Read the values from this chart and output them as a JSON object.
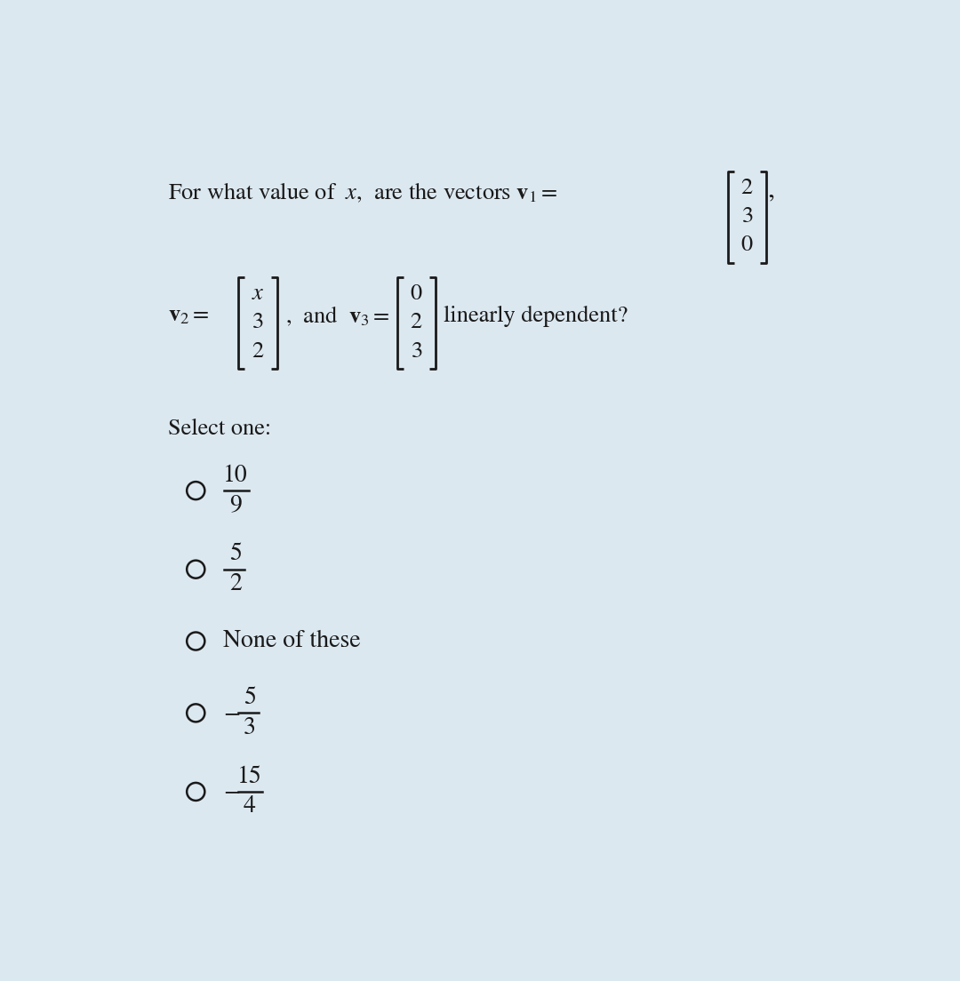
{
  "background_color": "#dce8f0",
  "fig_width": 10.8,
  "fig_height": 11.04,
  "text_color": "#1a1a1a",
  "font_size_main": 19,
  "font_size_option": 20,
  "v1": [
    "2",
    "3",
    "0"
  ],
  "v2": [
    "x",
    "3",
    "2"
  ],
  "v3": [
    "0",
    "2",
    "3"
  ]
}
